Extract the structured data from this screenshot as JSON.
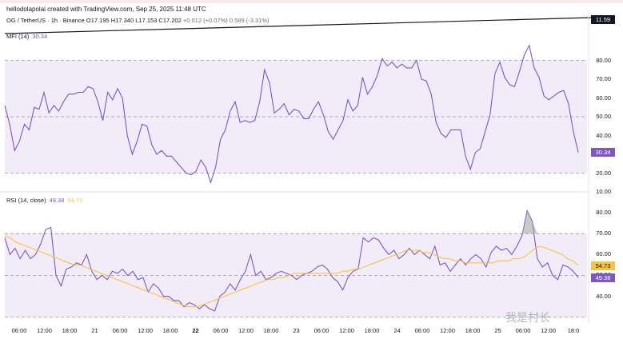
{
  "header": {
    "credit": "hellodolapolai created with TradingView.com, Sep 25, 2025 11:48 UTC",
    "symbol_line": "OG / TetherUS · 1h · Binance",
    "ohlc": "O17.195  H17.340  L17.153  C17.202",
    "change": "+0.012 (+0.07%)",
    "volume": "0.589 (-3.31%)",
    "price_box": "11.59"
  },
  "colors": {
    "line": "#7e57c2",
    "ma": "#f5c542",
    "band": "#ede7f6",
    "grid": "#9598a1"
  },
  "chart_data": [
    {
      "type": "line",
      "title": "MFI (14)",
      "current_value": "30.34",
      "ylim": [
        10,
        90
      ],
      "yticks": [
        "80.00",
        "70.00",
        "60.00",
        "50.00",
        "40.00",
        "30.00",
        "20.00",
        "10.00"
      ],
      "band": [
        20,
        80
      ],
      "levels": [
        80,
        50,
        20
      ],
      "series": [
        {
          "name": "MFI",
          "values": [
            56,
            46,
            32,
            37,
            46,
            43,
            55,
            54,
            63,
            52,
            56,
            53,
            58,
            62,
            62,
            63,
            63,
            66,
            65,
            58,
            48,
            63,
            59,
            65,
            60,
            40,
            30,
            37,
            46,
            45,
            35,
            30,
            32,
            29,
            29,
            26,
            23,
            20,
            19,
            21,
            27,
            23,
            15,
            23,
            38,
            43,
            53,
            58,
            47,
            48,
            47,
            48,
            58,
            75,
            68,
            52,
            54,
            57,
            51,
            54,
            53,
            49,
            49,
            54,
            58,
            51,
            42,
            38,
            43,
            48,
            59,
            53,
            56,
            71,
            62,
            66,
            72,
            81,
            77,
            79,
            76,
            78,
            76,
            76,
            80,
            70,
            69,
            62,
            47,
            41,
            39,
            43,
            43,
            43,
            29,
            22,
            31,
            33,
            42,
            51,
            73,
            79,
            71,
            67,
            66,
            74,
            83,
            88,
            76,
            71,
            61,
            59,
            61,
            63,
            64,
            57,
            42,
            31
          ],
          "last": "30.34"
        }
      ]
    },
    {
      "type": "line",
      "title": "RSI (14, close)",
      "values_label": [
        "49.38",
        "54.73"
      ],
      "ylim": [
        28,
        85
      ],
      "yticks": [
        "80.00",
        "70.00",
        "60.00",
        "50.00",
        "40.00"
      ],
      "band": [
        30,
        70
      ],
      "levels": [
        70,
        50,
        30
      ],
      "series": [
        {
          "name": "RSI",
          "values": [
            68,
            60,
            63,
            58,
            62,
            58,
            60,
            65,
            72,
            73,
            50,
            45,
            53,
            54,
            56,
            55,
            60,
            52,
            48,
            50,
            48,
            52,
            51,
            53,
            50,
            52,
            48,
            49,
            42,
            46,
            44,
            40,
            40,
            38,
            38,
            35,
            37,
            36,
            34,
            36,
            34,
            33,
            40,
            42,
            46,
            43,
            48,
            52,
            60,
            50,
            52,
            48,
            49,
            51,
            52,
            51,
            50,
            48,
            50,
            51,
            52,
            54,
            55,
            53,
            49,
            47,
            43,
            49,
            52,
            53,
            68,
            66,
            68,
            67,
            63,
            60,
            62,
            58,
            60,
            63,
            60,
            62,
            60,
            58,
            64,
            55,
            56,
            52,
            55,
            58,
            55,
            58,
            60,
            58,
            54,
            61,
            64,
            62,
            63,
            60,
            64,
            69,
            81,
            76,
            58,
            54,
            56,
            50,
            48,
            55,
            54,
            52,
            49
          ],
          "last": "49.38"
        },
        {
          "name": "RSI-based MA",
          "values": [
            69,
            68,
            66,
            65,
            64,
            63,
            62,
            61,
            60,
            59,
            58,
            57,
            56,
            55,
            55,
            54,
            53,
            52,
            51,
            50,
            49,
            48,
            47,
            46,
            45,
            44,
            43,
            42,
            41,
            40,
            39,
            38,
            37,
            36,
            35,
            35,
            35,
            36,
            37,
            38,
            39,
            40,
            41,
            42,
            43,
            44,
            45,
            46,
            47,
            48,
            48,
            49,
            49,
            50,
            51,
            51,
            51,
            51,
            51,
            51,
            51,
            51,
            51,
            52,
            52,
            53,
            53,
            54,
            55,
            56,
            57,
            58,
            59,
            60,
            61,
            62,
            62,
            62,
            61,
            61,
            60,
            59,
            58,
            58,
            57,
            57,
            56,
            56,
            56,
            56,
            56,
            56,
            57,
            57,
            57,
            58,
            58,
            59,
            61,
            63,
            64,
            63,
            62,
            61,
            60,
            58,
            57,
            54.73
          ],
          "last": "54.73"
        }
      ]
    }
  ],
  "time_axis": [
    {
      "label": "06:00"
    },
    {
      "label": "12:00"
    },
    {
      "label": "18:00"
    },
    {
      "label": "21"
    },
    {
      "label": "06:00"
    },
    {
      "label": "12:00"
    },
    {
      "label": "18:00"
    },
    {
      "label": "22",
      "bold": true
    },
    {
      "label": "06:00"
    },
    {
      "label": "12:00"
    },
    {
      "label": "18:00"
    },
    {
      "label": "23"
    },
    {
      "label": "06:00"
    },
    {
      "label": "12:00"
    },
    {
      "label": "18:00"
    },
    {
      "label": "24"
    },
    {
      "label": "06:00"
    },
    {
      "label": "12:00"
    },
    {
      "label": "18:00"
    },
    {
      "label": "25"
    },
    {
      "label": "06:00"
    },
    {
      "label": "12:00"
    },
    {
      "label": "18:0"
    }
  ],
  "watermark": "我是村长"
}
